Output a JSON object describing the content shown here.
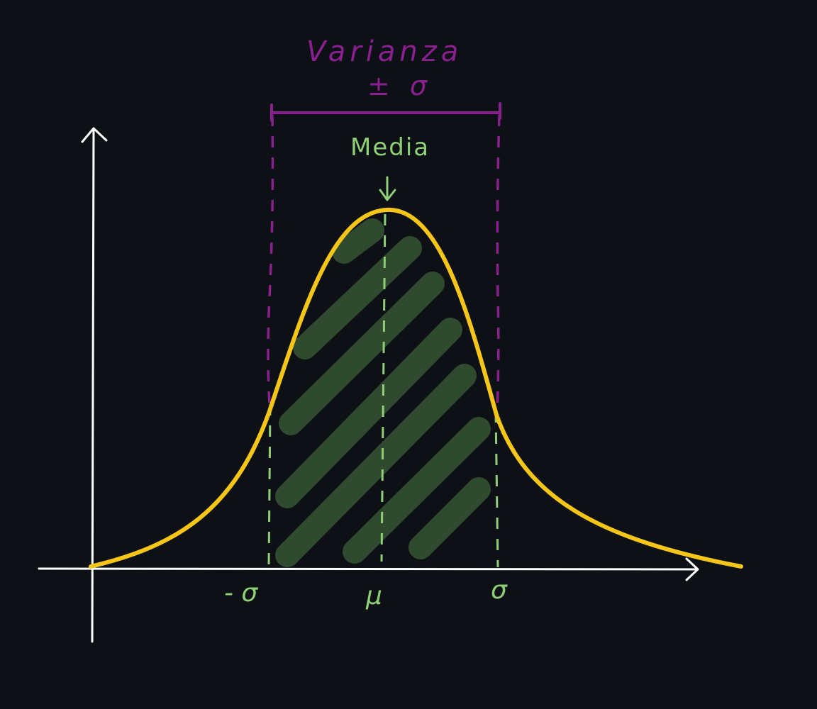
{
  "title": "Varianza",
  "plus_minus_sigma": "± σ",
  "mean_label": "Media",
  "x_ticks": {
    "minus_sigma": "- σ",
    "mu": "μ",
    "sigma": "σ"
  },
  "colors": {
    "background": "#0d1015",
    "axis": "#ffffff",
    "curve": "#f5c518",
    "purple": "#8a1f8f",
    "green_text": "#8fcf78",
    "green_fill": "#2f4a2e"
  }
}
